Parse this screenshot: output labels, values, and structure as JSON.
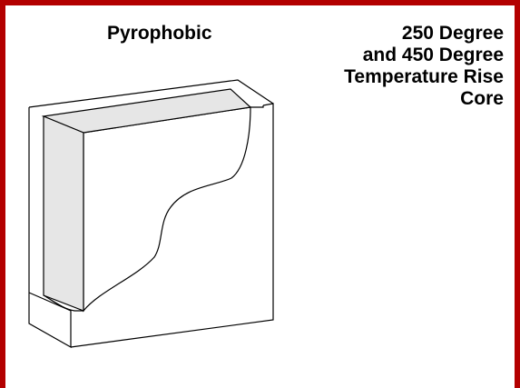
{
  "labels": {
    "left": "Pyrophobic",
    "right_lines": [
      "250 Degree",
      "and 450 Degree",
      "Temperature Rise",
      "Core"
    ]
  },
  "colors": {
    "frame": "#b30000",
    "core_fill": "#e6e6e6",
    "stroke": "#000000"
  }
}
